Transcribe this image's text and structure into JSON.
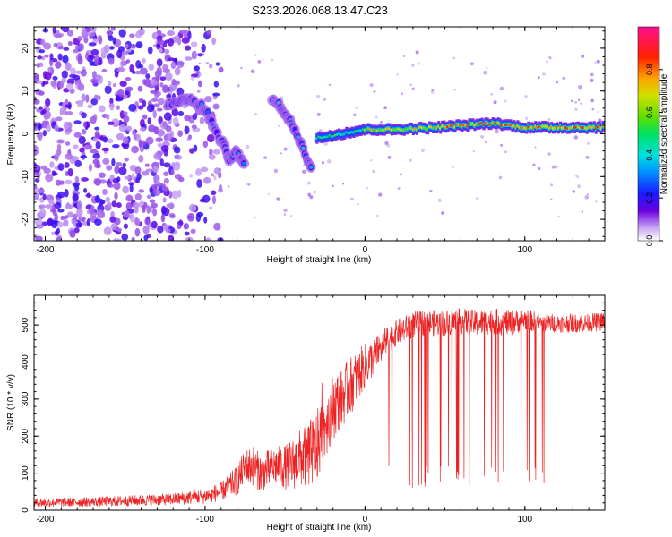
{
  "figure_title": "S233.2026.068.13.47.C23",
  "colors": {
    "snr_line": "#ee2222",
    "axis": "#000000",
    "background": "#ffffff"
  },
  "chart_data": [
    {
      "type": "heatmap",
      "title": "S233.2026.068.13.47.C23",
      "xlabel": "Height of straight line (km)",
      "ylabel": "Frequency (Hz)",
      "xlim": [
        -207,
        150
      ],
      "ylim": [
        -25,
        25
      ],
      "xticks": [
        -200,
        -100,
        0,
        100
      ],
      "yticks": [
        -20,
        -10,
        0,
        10,
        20
      ],
      "colorbar": {
        "label": "Normalized spectral amplitude",
        "range": [
          0,
          1
        ],
        "ticks": [
          0.0,
          0.2,
          0.4,
          0.6,
          0.8
        ],
        "tick_labels": [
          "0.0",
          "0.2",
          "0.4",
          "0.6",
          "0.8"
        ]
      },
      "features": [
        {
          "name": "noise-scatter",
          "x_range": [
            -207,
            -110
          ],
          "freq_range": [
            -25,
            25
          ],
          "amplitude": 0.1
        },
        {
          "name": "arc-left",
          "points": [
            [
              -123,
              7
            ],
            [
              -110,
              8
            ],
            [
              -100,
              6
            ],
            [
              -95,
              2
            ],
            [
              -88,
              -3
            ],
            [
              -85,
              -6
            ],
            [
              -80,
              -4
            ],
            [
              -75,
              -8
            ]
          ],
          "amplitude": 0.3
        },
        {
          "name": "arc-middle",
          "points": [
            [
              -58,
              8
            ],
            [
              -52,
              6
            ],
            [
              -47,
              3
            ],
            [
              -42,
              -1
            ],
            [
              -37,
              -5
            ],
            [
              -33,
              -9
            ]
          ],
          "amplitude": 0.35
        },
        {
          "name": "carrier",
          "points": [
            [
              -30,
              -1
            ],
            [
              -15,
              0
            ],
            [
              0,
              1
            ],
            [
              20,
              1
            ],
            [
              45,
              1.5
            ],
            [
              80,
              2.5
            ],
            [
              100,
              1.5
            ],
            [
              150,
              1.5
            ]
          ],
          "amplitude": 0.95
        }
      ]
    },
    {
      "type": "line",
      "xlabel": "Height of straight line (km)",
      "ylabel": "SNR (10 * v/v)",
      "xlim": [
        -207,
        150
      ],
      "ylim": [
        0,
        580
      ],
      "xticks": [
        -200,
        -100,
        0,
        100
      ],
      "yticks": [
        0,
        100,
        200,
        300,
        400,
        500
      ],
      "series": [
        {
          "name": "SNR",
          "x": [
            -207,
            -180,
            -150,
            -120,
            -100,
            -90,
            -80,
            -75,
            -70,
            -65,
            -60,
            -55,
            -50,
            -45,
            -40,
            -35,
            -30,
            -25,
            -20,
            -15,
            -10,
            -5,
            0,
            5,
            10,
            15,
            20,
            25,
            30,
            35,
            40,
            50,
            60,
            70,
            80,
            90,
            100,
            110,
            120,
            130,
            140,
            150
          ],
          "mean": [
            20,
            22,
            25,
            30,
            38,
            50,
            80,
            115,
            120,
            100,
            110,
            120,
            115,
            125,
            140,
            150,
            170,
            230,
            280,
            300,
            330,
            360,
            390,
            410,
            440,
            460,
            480,
            490,
            500,
            505,
            505,
            505,
            510,
            505,
            510,
            505,
            515,
            505,
            505,
            505,
            505,
            510
          ],
          "spread": [
            12,
            12,
            14,
            16,
            20,
            25,
            40,
            50,
            55,
            50,
            55,
            55,
            60,
            70,
            80,
            90,
            100,
            90,
            90,
            80,
            80,
            70,
            60,
            50,
            45,
            40,
            35,
            35,
            35,
            35,
            35,
            35,
            35,
            35,
            35,
            35,
            30,
            25,
            25,
            25,
            25,
            25
          ]
        }
      ]
    }
  ]
}
